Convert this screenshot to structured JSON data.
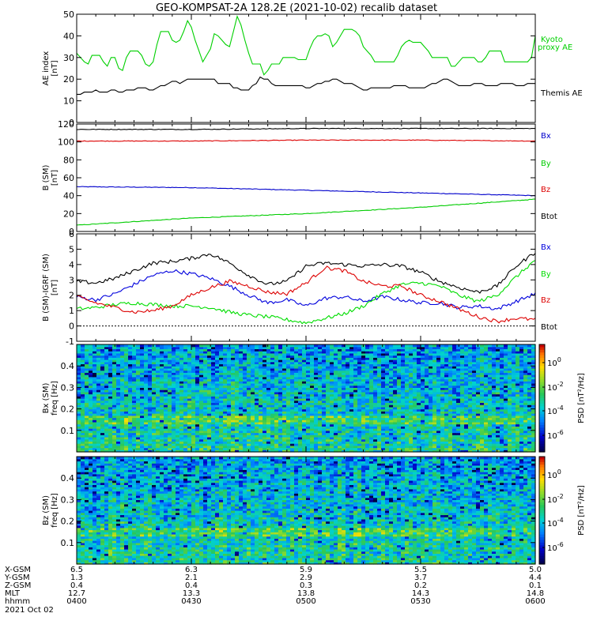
{
  "title": "GEO-KOMPSAT-2A 128.2E (2021-10-02) recalib dataset",
  "chart_data": [
    {
      "type": "line",
      "ylabel": "AE index",
      "yunit": "[nT]",
      "ylim": [
        0,
        50
      ],
      "yticks": [
        0,
        10,
        20,
        30,
        40,
        50
      ],
      "x_range_hhmm": [
        "0400",
        "0600"
      ],
      "series": [
        {
          "name": "Kyoto proxy AE",
          "label_lines": [
            "Kyoto",
            "proxy AE"
          ],
          "color": "#00d000",
          "x_min": [
            0,
            1,
            2,
            3,
            4,
            5,
            6,
            7,
            8,
            9,
            10,
            11,
            12,
            13,
            14,
            15,
            16,
            17,
            18,
            19,
            20,
            21,
            22,
            23,
            24,
            25,
            26,
            27,
            28,
            29,
            30,
            31,
            32,
            33,
            34,
            35,
            36,
            37,
            38,
            39,
            40,
            41,
            42,
            43,
            44,
            45,
            46,
            47,
            48,
            49,
            50,
            51,
            52,
            53,
            54,
            55,
            56,
            57,
            58,
            59,
            60,
            61,
            62,
            63,
            64,
            65,
            66,
            67,
            68,
            69,
            70,
            71,
            72,
            73,
            74,
            75,
            76,
            77,
            78,
            79,
            80,
            81,
            82,
            83,
            84,
            85,
            86,
            87,
            88,
            89,
            90,
            91,
            92,
            93,
            94,
            95,
            96,
            97,
            98,
            99,
            100,
            101,
            102,
            103,
            104,
            105,
            106,
            107,
            108,
            109,
            110,
            111,
            112,
            113,
            114,
            115,
            116,
            117,
            118,
            119,
            120
          ],
          "values": [
            32,
            30,
            28,
            27,
            31,
            31,
            31,
            28,
            26,
            30,
            30,
            25,
            24,
            30,
            33,
            33,
            33,
            31,
            27,
            26,
            28,
            36,
            42,
            42,
            42,
            38,
            37,
            38,
            42,
            47,
            44,
            38,
            33,
            28,
            31,
            34,
            41,
            40,
            38,
            36,
            35,
            42,
            49,
            45,
            38,
            32,
            27,
            27,
            27,
            22,
            24,
            27,
            27,
            27,
            30,
            30,
            30,
            30,
            29,
            29,
            29,
            34,
            38,
            40,
            40,
            41,
            40,
            35,
            37,
            40,
            43,
            43,
            43,
            42,
            40,
            35,
            33,
            31,
            28,
            28,
            28,
            28,
            28,
            28,
            31,
            35,
            37,
            38,
            37,
            37,
            37,
            35,
            33,
            30,
            30,
            30,
            30,
            30,
            26,
            26,
            28,
            30,
            30,
            30,
            30,
            28,
            28,
            30,
            33,
            33,
            33,
            33,
            28,
            28,
            28,
            28,
            28,
            28,
            28,
            30,
            40
          ]
        },
        {
          "name": "Themis AE",
          "label_lines": [
            "Themis AE"
          ],
          "color": "#000000",
          "x_min": [
            0,
            1,
            2,
            3,
            4,
            5,
            6,
            7,
            8,
            9,
            10,
            11,
            12,
            13,
            14,
            15,
            16,
            17,
            18,
            19,
            20,
            21,
            22,
            23,
            24,
            25,
            26,
            27,
            28,
            29,
            30,
            31,
            32,
            33,
            34,
            35,
            36,
            37,
            38,
            39,
            40,
            41,
            42,
            43,
            44,
            45,
            46,
            47,
            48,
            49,
            50,
            51,
            52,
            53,
            54,
            55,
            56,
            57,
            58,
            59,
            60,
            61,
            62,
            63,
            64,
            65,
            66,
            67,
            68,
            69,
            70,
            71,
            72,
            73,
            74,
            75,
            76,
            77,
            78,
            79,
            80,
            81,
            82,
            83,
            84,
            85,
            86,
            87,
            88,
            89,
            90,
            91,
            92,
            93,
            94,
            95,
            96,
            97,
            98,
            99,
            100,
            101,
            102,
            103,
            104,
            105,
            106,
            107,
            108,
            109,
            110,
            111,
            112,
            113,
            114,
            115,
            116,
            117,
            118,
            119,
            120
          ],
          "values": [
            13,
            13,
            14,
            14,
            14,
            15,
            14,
            14,
            14,
            15,
            15,
            14,
            14,
            15,
            15,
            15,
            16,
            16,
            16,
            15,
            15,
            16,
            17,
            17,
            18,
            19,
            19,
            18,
            19,
            20,
            20,
            20,
            20,
            20,
            20,
            20,
            20,
            18,
            18,
            18,
            18,
            16,
            16,
            15,
            15,
            15,
            17,
            18,
            21,
            20,
            20,
            18,
            17,
            17,
            17,
            17,
            17,
            17,
            17,
            17,
            16,
            16,
            17,
            18,
            18,
            19,
            19,
            20,
            20,
            19,
            18,
            18,
            18,
            17,
            16,
            15,
            15,
            16,
            16,
            16,
            16,
            16,
            16,
            17,
            17,
            17,
            17,
            16,
            16,
            16,
            16,
            16,
            17,
            18,
            18,
            19,
            20,
            20,
            19,
            18,
            17,
            17,
            17,
            17,
            18,
            18,
            18,
            17,
            17,
            17,
            17,
            18,
            18,
            18,
            18,
            17,
            17,
            17,
            18,
            18,
            18
          ]
        }
      ]
    },
    {
      "type": "line",
      "ylabel": "B (SM)",
      "yunit": "[nT]",
      "ylim": [
        0,
        120
      ],
      "yticks": [
        0,
        20,
        40,
        60,
        80,
        100,
        120
      ],
      "x_range_hhmm": [
        "0400",
        "0600"
      ],
      "series": [
        {
          "name": "Bx",
          "color": "#0000cc",
          "x_min": [
            0,
            30,
            60,
            90,
            120
          ],
          "values": [
            50,
            49,
            46,
            43,
            40
          ]
        },
        {
          "name": "By",
          "color": "#00cc00",
          "x_min": [
            0,
            30,
            60,
            90,
            120
          ],
          "values": [
            7,
            15,
            20,
            27,
            36
          ]
        },
        {
          "name": "Bz",
          "color": "#dd0000",
          "x_min": [
            0,
            30,
            60,
            90,
            120
          ],
          "values": [
            101,
            101,
            102,
            102,
            101
          ]
        },
        {
          "name": "Btot",
          "color": "#000000",
          "x_min": [
            0,
            30,
            60,
            90,
            120
          ],
          "values": [
            114,
            114,
            115,
            115,
            115
          ]
        }
      ]
    },
    {
      "type": "line",
      "ylabel": "B (SM)-IGRF (SM)",
      "yunit": "[nT]",
      "ylim": [
        -1,
        6
      ],
      "yticks": [
        -1,
        0,
        1,
        2,
        3,
        4,
        5,
        6
      ],
      "x_range_hhmm": [
        "0400",
        "0600"
      ],
      "series": [
        {
          "name": "Bx",
          "color": "#0000dd",
          "x_min": [
            0,
            5,
            10,
            15,
            20,
            25,
            30,
            35,
            40,
            45,
            50,
            55,
            60,
            65,
            70,
            75,
            80,
            85,
            90,
            95,
            100,
            105,
            110,
            115,
            120
          ],
          "values": [
            1.9,
            1.7,
            2.1,
            2.7,
            3.3,
            3.6,
            3.4,
            3.1,
            2.6,
            2.0,
            1.5,
            1.7,
            1.3,
            1.8,
            1.9,
            1.6,
            1.9,
            1.7,
            1.5,
            1.5,
            1.2,
            1.3,
            1.1,
            1.6,
            2.1
          ]
        },
        {
          "name": "By",
          "color": "#00dd00",
          "x_min": [
            0,
            5,
            10,
            15,
            20,
            25,
            30,
            35,
            40,
            45,
            50,
            55,
            60,
            65,
            70,
            75,
            80,
            85,
            90,
            95,
            100,
            105,
            110,
            115,
            120
          ],
          "values": [
            1.1,
            1.2,
            1.4,
            1.5,
            1.4,
            1.3,
            1.3,
            1.2,
            0.9,
            0.7,
            0.6,
            0.4,
            0.2,
            0.5,
            0.8,
            1.3,
            2.1,
            2.7,
            2.8,
            2.6,
            2.0,
            1.6,
            2.0,
            3.2,
            4.3
          ]
        },
        {
          "name": "Bz",
          "color": "#dd0000",
          "x_min": [
            0,
            5,
            10,
            15,
            20,
            25,
            30,
            35,
            40,
            45,
            50,
            55,
            60,
            65,
            70,
            75,
            80,
            85,
            90,
            95,
            100,
            105,
            110,
            115,
            120
          ],
          "values": [
            1.9,
            1.5,
            1.2,
            0.9,
            1.0,
            1.3,
            2.0,
            2.5,
            2.9,
            2.6,
            2.2,
            2.1,
            2.8,
            3.8,
            3.6,
            2.9,
            2.6,
            2.6,
            2.0,
            1.6,
            1.1,
            0.6,
            0.3,
            0.5,
            0.4
          ]
        },
        {
          "name": "Btot",
          "color": "#000000",
          "x_min": [
            0,
            5,
            10,
            15,
            20,
            25,
            30,
            35,
            40,
            45,
            50,
            55,
            60,
            65,
            70,
            75,
            80,
            85,
            90,
            95,
            100,
            105,
            110,
            115,
            120
          ],
          "values": [
            2.9,
            2.8,
            3.1,
            3.6,
            4.1,
            4.2,
            4.4,
            4.7,
            4.1,
            3.3,
            2.7,
            2.9,
            3.9,
            4.1,
            4.0,
            3.9,
            4.0,
            3.9,
            3.5,
            2.9,
            2.5,
            2.2,
            2.6,
            3.9,
            4.8
          ]
        }
      ]
    },
    {
      "type": "heatmap",
      "ylabel": "Bx (SM)",
      "yunit": "freq [Hz]",
      "ylim": [
        0,
        0.5
      ],
      "yticks": [
        0.1,
        0.2,
        0.3,
        0.4
      ],
      "colorbar": {
        "label": "PSD [nT²/Hz]",
        "ticks": [
          "10^0",
          "10^-2",
          "10^-4",
          "10^-6"
        ]
      }
    },
    {
      "type": "heatmap",
      "ylabel": "Bz (SM)",
      "yunit": "freq [Hz]",
      "ylim": [
        0,
        0.5
      ],
      "yticks": [
        0.1,
        0.2,
        0.3,
        0.4
      ],
      "colorbar": {
        "label": "PSD [nT²/Hz]",
        "ticks": [
          "10^0",
          "10^-2",
          "10^-4",
          "10^-6"
        ]
      }
    }
  ],
  "xaxis": {
    "rows": [
      {
        "label": "X-GSM",
        "values": [
          "6.5",
          "6.3",
          "5.9",
          "5.5",
          "5.0"
        ]
      },
      {
        "label": "Y-GSM",
        "values": [
          "1.3",
          "2.1",
          "2.9",
          "3.7",
          "4.4"
        ]
      },
      {
        "label": "Z-GSM",
        "values": [
          "0.4",
          "0.4",
          "0.3",
          "0.2",
          "0.1"
        ]
      },
      {
        "label": "MLT",
        "values": [
          "12.7",
          "13.3",
          "13.8",
          "14.3",
          "14.8"
        ]
      },
      {
        "label": "hhmm",
        "values": [
          "0400",
          "0430",
          "0500",
          "0530",
          "0600"
        ]
      }
    ],
    "date": "2021 Oct 02"
  }
}
